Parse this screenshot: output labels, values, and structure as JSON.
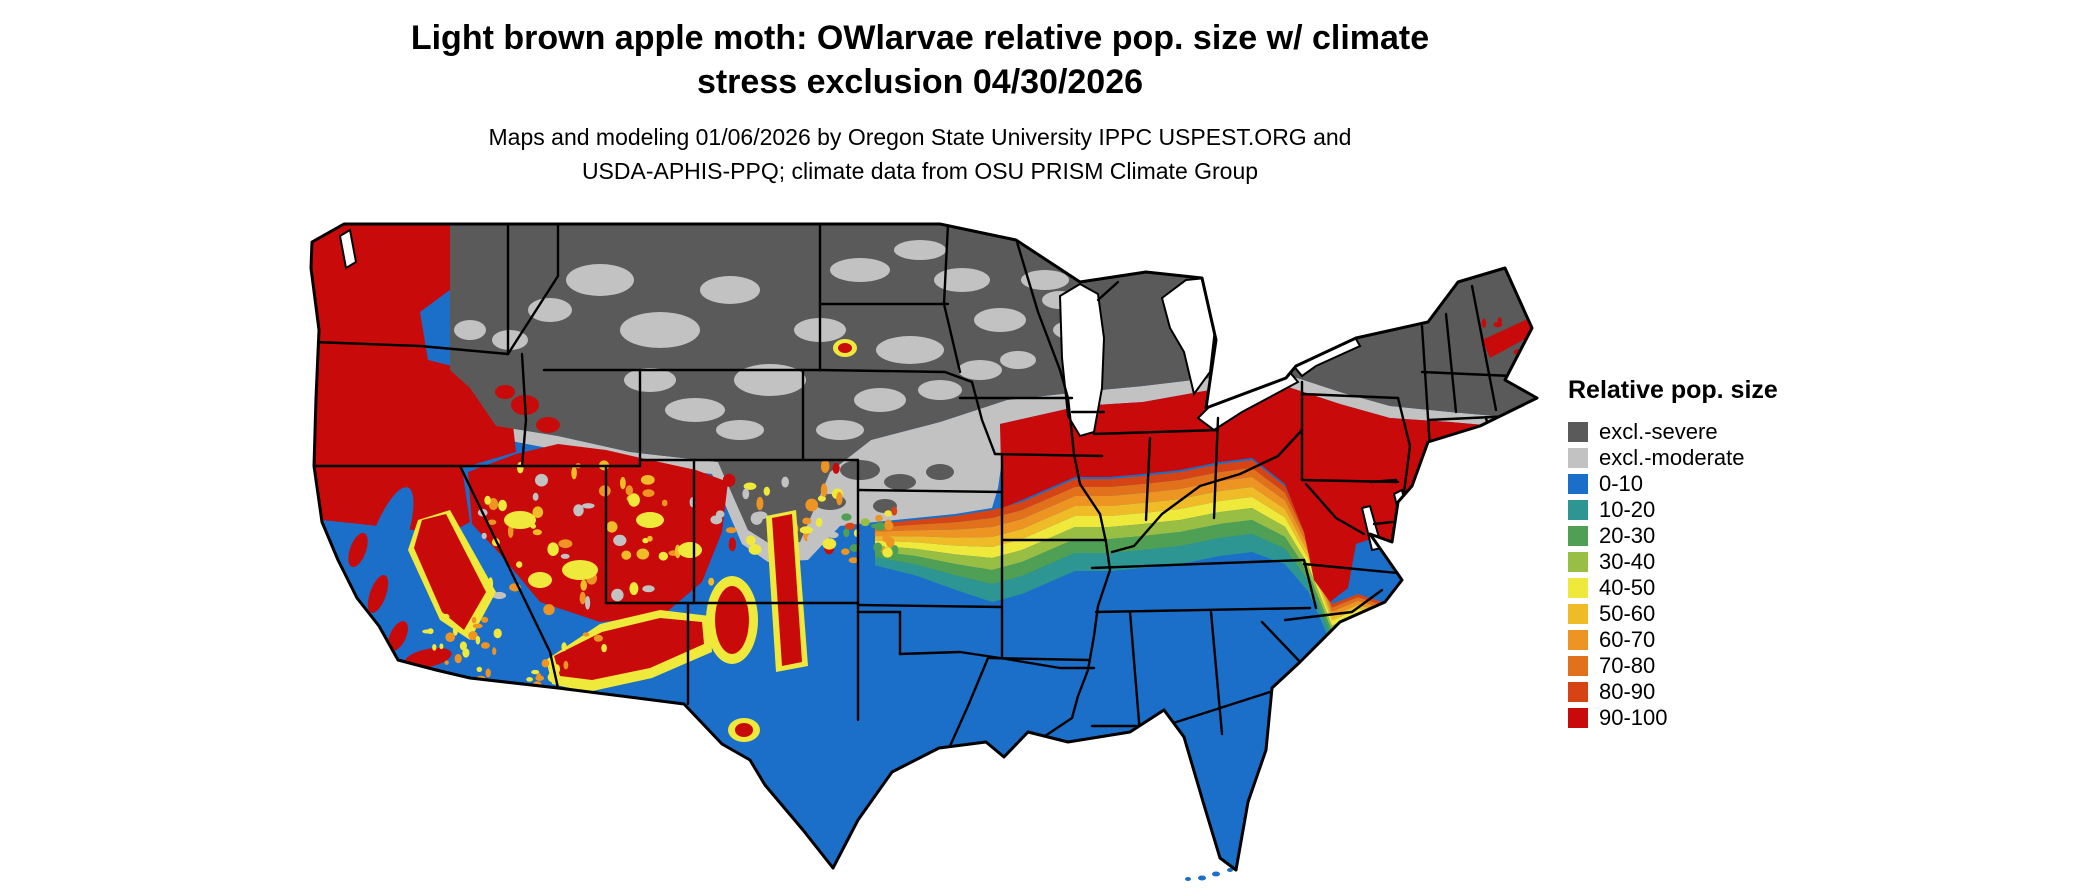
{
  "header": {
    "title_line1": "Light brown apple moth: OWlarvae relative pop. size w/ climate",
    "title_line2": "stress exclusion 04/30/2026",
    "subtitle_line1": "Maps and modeling 01/06/2026 by Oregon State University IPPC USPEST.ORG and",
    "subtitle_line2": "USDA-APHIS-PPQ; climate data from OSU PRISM Climate Group"
  },
  "legend": {
    "title": "Relative pop. size",
    "items": [
      {
        "label": "excl.-severe",
        "color": "#5A5A5A"
      },
      {
        "label": "excl.-moderate",
        "color": "#C2C2C2"
      },
      {
        "label": "0-10",
        "color": "#1B6FC8"
      },
      {
        "label": "10-20",
        "color": "#2D9693"
      },
      {
        "label": "20-30",
        "color": "#4FA054"
      },
      {
        "label": "30-40",
        "color": "#98BE43"
      },
      {
        "label": "40-50",
        "color": "#EFE93B"
      },
      {
        "label": "50-60",
        "color": "#EFBC28"
      },
      {
        "label": "60-70",
        "color": "#ED9422"
      },
      {
        "label": "70-80",
        "color": "#E2711B"
      },
      {
        "label": "80-90",
        "color": "#D64315"
      },
      {
        "label": "90-100",
        "color": "#C80A0A"
      }
    ]
  }
}
